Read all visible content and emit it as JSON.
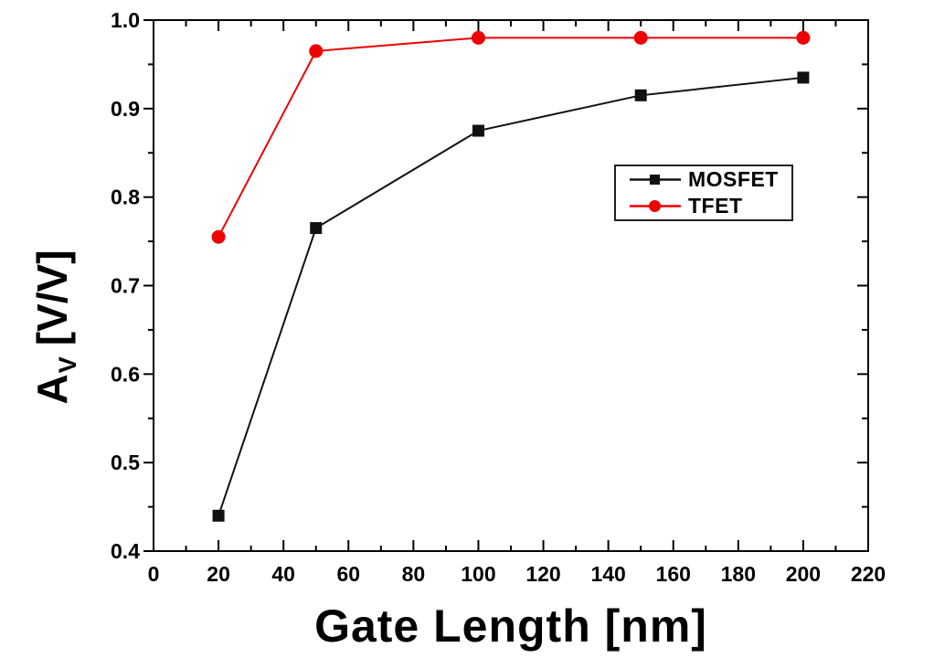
{
  "figure": {
    "background": "#ffffff",
    "axis_color": "#000000",
    "tick_label_color": "#000000"
  },
  "chart_data": {
    "type": "line",
    "title": "",
    "xlabel": "Gate Length [nm]",
    "ylabel": {
      "base": "A",
      "sub": "V",
      "unit": "[V/V]"
    },
    "x": [
      20,
      50,
      100,
      150,
      200
    ],
    "series": [
      {
        "name": "MOSFET",
        "color": "#111111",
        "marker": "square",
        "values": [
          0.44,
          0.765,
          0.875,
          0.915,
          0.935
        ]
      },
      {
        "name": "TFET",
        "color": "#ef0000",
        "marker": "circle",
        "values": [
          0.755,
          0.965,
          0.98,
          0.98,
          0.98
        ]
      }
    ],
    "xlim": [
      0,
      220
    ],
    "ylim": [
      0.4,
      1.0
    ],
    "x_major_ticks": [
      0,
      20,
      40,
      60,
      80,
      100,
      120,
      140,
      160,
      180,
      200,
      220
    ],
    "x_minor_step": 10,
    "y_major_ticks": [
      0.4,
      0.5,
      0.6,
      0.7,
      0.8,
      0.9,
      1.0
    ],
    "y_minor_step": 0.05,
    "grid": false,
    "legend": {
      "position": "inside-upper-right",
      "entries": [
        "MOSFET",
        "TFET"
      ]
    }
  }
}
